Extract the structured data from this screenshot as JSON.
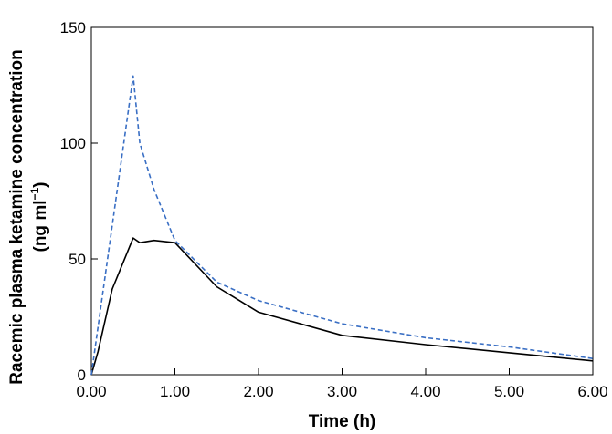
{
  "chart_data": {
    "type": "line",
    "xlabel": "Time (h)",
    "ylabel": {
      "line1": "Racemic plasma ketamine concentration",
      "line2_prefix": "(ng ml",
      "line2_sup": "−1",
      "line2_suffix": ")"
    },
    "xlim": [
      0,
      6
    ],
    "ylim": [
      0,
      150
    ],
    "x_ticks": [
      0,
      1,
      2,
      3,
      4,
      5,
      6
    ],
    "x_tick_labels": [
      "0.00",
      "1.00",
      "2.00",
      "3.00",
      "4.00",
      "5.00",
      "6.00"
    ],
    "y_ticks": [
      0,
      50,
      100,
      150
    ],
    "y_tick_labels": [
      "0",
      "50",
      "100",
      "150"
    ],
    "grid": false,
    "series": [
      {
        "style": "solid",
        "color": "#000000",
        "x": [
          0,
          0.08,
          0.25,
          0.5,
          0.58,
          0.75,
          1.0,
          1.5,
          2.0,
          3.0,
          4.0,
          5.0,
          6.0
        ],
        "y": [
          0,
          10,
          37,
          59,
          57,
          58,
          57,
          38,
          27,
          17,
          13,
          9.5,
          6
        ]
      },
      {
        "style": "dashed",
        "color": "#3a6fc4",
        "x": [
          0,
          0.5,
          0.58,
          0.75,
          1.0,
          1.5,
          2.0,
          3.0,
          4.0,
          5.0,
          6.0
        ],
        "y": [
          0,
          129,
          100,
          80,
          58,
          40,
          32,
          22,
          16,
          12,
          7
        ]
      }
    ]
  }
}
